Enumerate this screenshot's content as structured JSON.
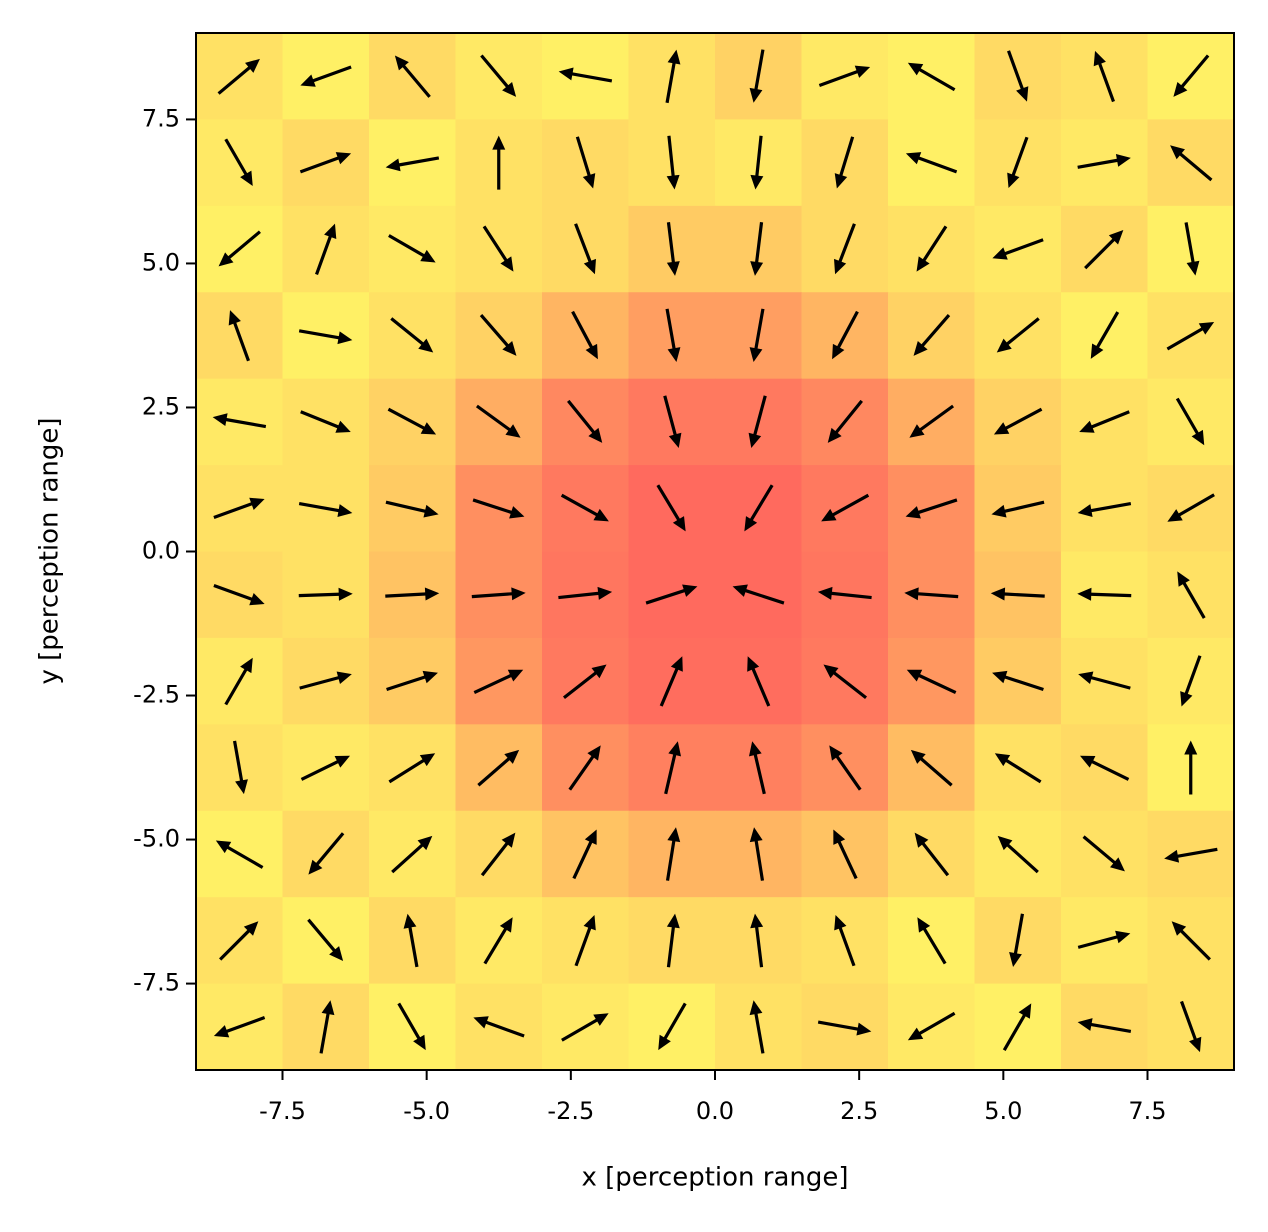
{
  "chart_data": {
    "type": "quiver",
    "xlabel": "x [perception range]",
    "ylabel": "y [perception range]",
    "xlim": [
      -9,
      9
    ],
    "ylim": [
      -9,
      9
    ],
    "xticks": [
      -7.5,
      {
        "value": -5,
        "label": "-5.0"
      },
      -2.5,
      {
        "value": 0,
        "label": "0.0"
      },
      2.5,
      {
        "value": 5,
        "label": "5.0"
      },
      7.5
    ],
    "yticks": [
      -7.5,
      {
        "value": -5,
        "label": "-5.0"
      },
      -2.5,
      {
        "value": 0,
        "label": "0.0"
      },
      2.5,
      {
        "value": 5,
        "label": "5.0"
      },
      7.5
    ],
    "x": [
      -8.25,
      -6.75,
      -5.25,
      -3.75,
      -2.25,
      -0.75,
      0.75,
      2.25,
      3.75,
      5.25,
      6.75,
      8.25
    ],
    "y": [
      8.25,
      6.75,
      5.25,
      3.75,
      2.25,
      0.75,
      -0.75,
      -2.25,
      -3.75,
      -5.25,
      -6.75,
      -8.25
    ],
    "angles": [
      [
        40,
        200,
        130,
        310,
        170,
        80,
        260,
        20,
        150,
        290,
        110,
        230
      ],
      [
        300,
        20,
        190,
        90,
        -73,
        -84,
        -96,
        -107,
        160,
        250,
        10,
        140
      ],
      [
        220,
        70,
        330,
        -57,
        -69,
        -83,
        -97,
        -111,
        -123,
        200,
        45,
        280
      ],
      [
        110,
        350,
        -39,
        -49,
        -62,
        -80,
        -100,
        -118,
        -131,
        -141,
        240,
        30
      ],
      [
        170,
        -22,
        -28,
        -36,
        -51,
        -75,
        -105,
        -129,
        -144,
        -152,
        -158,
        300
      ],
      [
        20,
        -10,
        -13,
        -18,
        -29,
        -59,
        -121,
        -151,
        -162,
        -167,
        -170,
        210
      ],
      [
        340,
        2,
        3,
        4,
        6,
        18,
        162,
        174,
        176,
        177,
        178,
        120
      ],
      [
        60,
        15,
        18,
        25,
        38,
        67,
        113,
        142,
        155,
        162,
        165,
        250
      ],
      [
        280,
        26,
        32,
        41,
        55,
        77,
        103,
        125,
        139,
        148,
        154,
        90
      ],
      [
        150,
        230,
        42,
        52,
        65,
        81,
        99,
        115,
        128,
        138,
        320,
        190
      ],
      [
        45,
        310,
        100,
        59,
        70,
        83,
        97,
        110,
        121,
        260,
        15,
        135
      ],
      [
        200,
        80,
        300,
        160,
        30,
        240,
        100,
        350,
        210,
        60,
        170,
        290
      ]
    ],
    "heat": [
      [
        0.2,
        0.1,
        0.25,
        0.15,
        0.1,
        0.2,
        0.3,
        0.15,
        0.1,
        0.25,
        0.2,
        0.1
      ],
      [
        0.15,
        0.25,
        0.1,
        0.2,
        0.25,
        0.2,
        0.15,
        0.25,
        0.1,
        0.2,
        0.15,
        0.25
      ],
      [
        0.1,
        0.2,
        0.15,
        0.2,
        0.25,
        0.35,
        0.35,
        0.25,
        0.2,
        0.15,
        0.25,
        0.1
      ],
      [
        0.25,
        0.1,
        0.2,
        0.3,
        0.5,
        0.65,
        0.65,
        0.5,
        0.3,
        0.2,
        0.1,
        0.2
      ],
      [
        0.15,
        0.2,
        0.3,
        0.55,
        0.8,
        0.9,
        0.9,
        0.8,
        0.55,
        0.3,
        0.2,
        0.15
      ],
      [
        0.2,
        0.2,
        0.35,
        0.75,
        0.9,
        1,
        1,
        0.9,
        0.75,
        0.35,
        0.2,
        0.25
      ],
      [
        0.25,
        0.2,
        0.4,
        0.75,
        0.92,
        1,
        1,
        0.92,
        0.75,
        0.4,
        0.15,
        0.2
      ],
      [
        0.15,
        0.25,
        0.35,
        0.7,
        0.9,
        0.98,
        0.98,
        0.9,
        0.7,
        0.35,
        0.2,
        0.15
      ],
      [
        0.2,
        0.15,
        0.2,
        0.45,
        0.75,
        0.85,
        0.85,
        0.75,
        0.45,
        0.2,
        0.25,
        0.1
      ],
      [
        0.1,
        0.25,
        0.15,
        0.25,
        0.4,
        0.5,
        0.5,
        0.4,
        0.25,
        0.15,
        0.2,
        0.25
      ],
      [
        0.2,
        0.1,
        0.25,
        0.15,
        0.2,
        0.25,
        0.25,
        0.2,
        0.1,
        0.25,
        0.15,
        0.2
      ],
      [
        0.15,
        0.25,
        0.1,
        0.2,
        0.15,
        0.1,
        0.2,
        0.25,
        0.15,
        0.1,
        0.25,
        0.2
      ]
    ],
    "heat_colors": [
      "#ffff66",
      "#ff6a5e"
    ],
    "arrow_color": "#000000"
  }
}
